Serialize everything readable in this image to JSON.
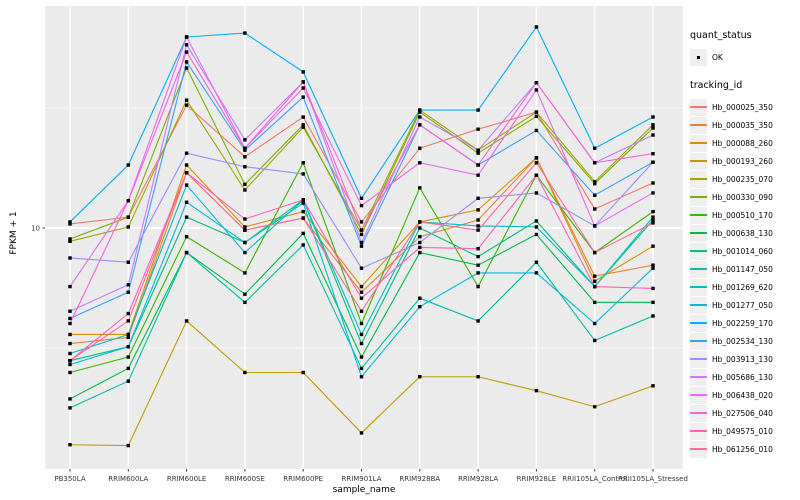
{
  "figure": {
    "x_axis": {
      "title": "sample_name"
    },
    "y_axis": {
      "title": "FPKM + 1",
      "scale": "log10",
      "tick_labels": [
        "10"
      ]
    },
    "legend": {
      "quant_status": {
        "title": "quant_status",
        "items": [
          {
            "label": "OK"
          }
        ]
      },
      "tracking_id": {
        "title": "tracking_id"
      }
    }
  },
  "chart_data": {
    "type": "line",
    "title": "",
    "xlabel": "sample_name",
    "ylabel": "FPKM + 1",
    "y_scale": "log10",
    "ylim": [
      1.05,
      90
    ],
    "y_ticks": [
      10
    ],
    "grid": true,
    "legend_position": "right",
    "panel_background": "#EBEBEB",
    "point_color": "#000000",
    "categories": [
      "PB350LA",
      "RRIM600LA",
      "RRIM600LE",
      "RRIM600SE",
      "RRIM600PE",
      "RRIM901LA",
      "RRIM928BA",
      "RRIM928LA",
      "RRIM928LE",
      "RRII105LA_Control",
      "RRII105LA_Stressed"
    ],
    "series": [
      {
        "name": "Hb_000025_350",
        "color": "#F8766D",
        "values": [
          10.4,
          11.1,
          32.5,
          19.8,
          29,
          10.6,
          21.5,
          25.8,
          30.4,
          12,
          15.4
        ]
      },
      {
        "name": "Hb_000035_350",
        "color": "#EA8331",
        "values": [
          3.3,
          3.5,
          17,
          9.8,
          11,
          5.4,
          9.2,
          10.8,
          19.6,
          6.3,
          7
        ]
      },
      {
        "name": "Hb_000088_260",
        "color": "#D89000",
        "values": [
          3.6,
          3.6,
          18.3,
          10.1,
          11.7,
          5.7,
          10.6,
          11.9,
          19.6,
          6,
          8.4
        ]
      },
      {
        "name": "Hb_000193_260",
        "color": "#C09B00",
        "values": [
          1.25,
          1.24,
          4.1,
          2.5,
          2.5,
          1.4,
          2.4,
          2.4,
          2.1,
          1.8,
          2.2
        ]
      },
      {
        "name": "Hb_000235_070",
        "color": "#A3A500",
        "values": [
          8.8,
          10.1,
          34.1,
          14.4,
          26.3,
          9.8,
          31,
          21.1,
          30.4,
          15.6,
          26.9
        ]
      },
      {
        "name": "Hb_000330_090",
        "color": "#7CAE00",
        "values": [
          9,
          11.1,
          46.4,
          15.2,
          26.9,
          9.4,
          30.4,
          20.5,
          29.2,
          15.3,
          26.1
        ]
      },
      {
        "name": "Hb_000510_170",
        "color": "#39B600",
        "values": [
          2.5,
          2.9,
          9.2,
          6.5,
          18.7,
          4,
          14.7,
          5.7,
          16.6,
          7.9,
          11.7
        ]
      },
      {
        "name": "Hb_000638_130",
        "color": "#00BB4E",
        "values": [
          1.94,
          2.6,
          7.9,
          5.3,
          9.5,
          2.9,
          7.9,
          7,
          9.4,
          4.9,
          4.9
        ]
      },
      {
        "name": "Hb_001014_060",
        "color": "#00BF7D",
        "values": [
          2.8,
          3.2,
          11.1,
          8.7,
          13.1,
          3.3,
          10,
          7.6,
          10.7,
          5.7,
          10.8
        ]
      },
      {
        "name": "Hb_001147_050",
        "color": "#00C1A3",
        "values": [
          1.78,
          2.3,
          7.9,
          4.9,
          8.5,
          2.6,
          5.1,
          4.1,
          7.2,
          3.4,
          4.3
        ]
      },
      {
        "name": "Hb_001269_620",
        "color": "#00BFC4",
        "values": [
          3,
          3.6,
          15.1,
          7.9,
          13.1,
          3.6,
          10.6,
          10.2,
          10.1,
          5.7,
          11.1
        ]
      },
      {
        "name": "Hb_001277_050",
        "color": "#00BAE0",
        "values": [
          2.7,
          3.2,
          12.8,
          8.7,
          12.7,
          2.4,
          4.7,
          6.5,
          6.5,
          4,
          6.8
        ]
      },
      {
        "name": "Hb_002259_170",
        "color": "#00B0F6",
        "values": [
          10.6,
          18.3,
          62.5,
          64.9,
          44.7,
          13.3,
          31,
          31,
          68.8,
          21.5,
          29
        ]
      },
      {
        "name": "Hb_002534_130",
        "color": "#35A2FF",
        "values": [
          4.2,
          5.4,
          49.2,
          21.1,
          35.1,
          8.4,
          26.9,
          18.3,
          25.5,
          13.7,
          18.8
        ]
      },
      {
        "name": "Hb_003913_130",
        "color": "#9590FF",
        "values": [
          7.5,
          7.2,
          20.5,
          18,
          16.8,
          6.8,
          8.7,
          13.3,
          14,
          10.2,
          18.8
        ]
      },
      {
        "name": "Hb_005686_130",
        "color": "#C77CFF",
        "values": [
          4.5,
          5.8,
          58,
          23.3,
          40.6,
          8.7,
          29,
          21.1,
          40.3,
          18.7,
          24.4
        ]
      },
      {
        "name": "Hb_006438_020",
        "color": "#E76BF3",
        "values": [
          5.7,
          13,
          62.5,
          21.5,
          38.3,
          12.4,
          18.7,
          16.6,
          37.6,
          10.2,
          14
        ]
      },
      {
        "name": "Hb_027506_040",
        "color": "#FA62DB",
        "values": [
          4,
          13,
          54.1,
          21.5,
          40.6,
          9.8,
          26.9,
          18.3,
          40.3,
          18.7,
          20.4
        ]
      },
      {
        "name": "Hb_049575_010",
        "color": "#FF62BC",
        "values": [
          2.8,
          4.4,
          17,
          10.9,
          13.1,
          5.1,
          8.3,
          8.2,
          16.6,
          5.7,
          5.6
        ]
      },
      {
        "name": "Hb_061256_010",
        "color": "#FF6A98",
        "values": [
          2.8,
          4.1,
          17,
          9.8,
          11,
          4.5,
          10.6,
          9.8,
          18.7,
          7.9,
          10.5
        ]
      }
    ]
  }
}
